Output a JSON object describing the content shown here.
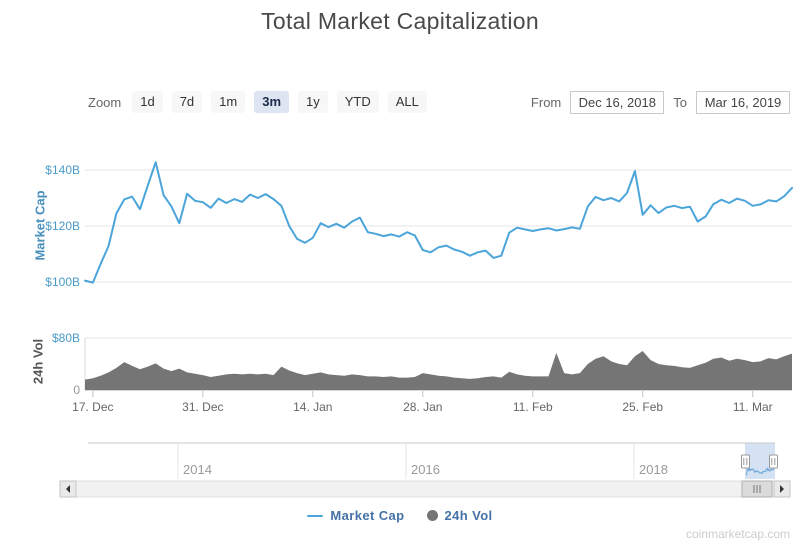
{
  "title": "Total Market Capitalization",
  "range_selector": {
    "zoom_label": "Zoom",
    "buttons": [
      {
        "label": "1d",
        "selected": false
      },
      {
        "label": "7d",
        "selected": false
      },
      {
        "label": "1m",
        "selected": false
      },
      {
        "label": "3m",
        "selected": true
      },
      {
        "label": "1y",
        "selected": false
      },
      {
        "label": "YTD",
        "selected": false
      },
      {
        "label": "ALL",
        "selected": false
      }
    ],
    "from_label": "From",
    "from_value": "Dec 16, 2018",
    "to_label": "To",
    "to_value": "Mar 16, 2019"
  },
  "chart_data": [
    {
      "type": "line",
      "name": "Market Cap",
      "ylabel": "Market Cap",
      "unit": "$B",
      "color": "#4ba5da",
      "x_start": "Dec 16, 2018",
      "x_end": "Mar 16, 2019",
      "x_interval": "daily",
      "ylim": [
        97,
        146
      ],
      "yticks": [
        {
          "value": 140,
          "label": "$140B"
        },
        {
          "value": 120,
          "label": "$120B"
        },
        {
          "value": 100,
          "label": "$100B"
        }
      ],
      "xticks": [
        {
          "day_index": 1,
          "label": "17. Dec"
        },
        {
          "day_index": 15,
          "label": "31. Dec"
        },
        {
          "day_index": 29,
          "label": "14. Jan"
        },
        {
          "day_index": 43,
          "label": "28. Jan"
        },
        {
          "day_index": 57,
          "label": "11. Feb"
        },
        {
          "day_index": 71,
          "label": "25. Feb"
        },
        {
          "day_index": 85,
          "label": "11. Mar"
        }
      ],
      "values": [
        100.5,
        99.8,
        106.5,
        112.9,
        124.5,
        129.5,
        130.5,
        126.0,
        134.5,
        142.8,
        131.0,
        127.0,
        121.0,
        131.5,
        129.0,
        128.5,
        126.5,
        129.8,
        128.2,
        129.6,
        128.6,
        131.2,
        130.0,
        131.4,
        129.6,
        127.2,
        120.0,
        115.4,
        114.0,
        115.8,
        121.0,
        119.6,
        120.8,
        119.4,
        121.6,
        123.0,
        117.8,
        117.2,
        116.4,
        117.0,
        116.2,
        117.8,
        116.6,
        111.4,
        110.6,
        112.4,
        113.0,
        111.6,
        110.8,
        109.4,
        110.6,
        111.2,
        108.6,
        109.4,
        117.6,
        119.4,
        118.8,
        118.2,
        118.8,
        119.2,
        118.4,
        118.9,
        119.5,
        119.0,
        127.0,
        130.4,
        129.2,
        130.0,
        128.8,
        131.8,
        139.6,
        124.0,
        127.4,
        124.6,
        126.6,
        127.2,
        126.4,
        126.9,
        121.6,
        123.4,
        127.8,
        129.4,
        128.2,
        129.8,
        129.0,
        127.2,
        127.7,
        129.2,
        128.8,
        130.6,
        133.6
      ]
    },
    {
      "type": "area",
      "name": "24h Vol",
      "ylabel": "24h Vol",
      "unit": "$B",
      "color": "#757575",
      "x_start": "Dec 16, 2018",
      "x_end": "Mar 16, 2019",
      "x_interval": "daily",
      "ylim": [
        0,
        85
      ],
      "yticks": [
        {
          "value": 80,
          "label": "$80B",
          "muted": false
        },
        {
          "value": 0,
          "label": "0",
          "muted": true
        }
      ],
      "values": [
        16,
        18,
        22,
        27,
        34,
        43,
        37,
        32,
        36,
        41,
        33,
        29,
        33,
        27,
        25,
        23,
        20,
        22,
        24,
        25,
        24,
        25,
        24,
        25,
        23,
        36,
        30,
        26,
        23,
        25,
        27,
        24,
        23,
        22,
        24,
        23,
        21,
        21,
        20,
        21,
        19,
        19,
        20,
        26,
        24,
        22,
        21,
        19,
        18,
        17,
        18,
        20,
        21,
        19,
        28,
        24,
        22,
        21,
        21,
        21,
        57,
        26,
        24,
        26,
        40,
        48,
        52,
        44,
        40,
        38,
        52,
        60,
        46,
        40,
        38,
        37,
        35,
        34,
        38,
        42,
        48,
        50,
        45,
        48,
        46,
        43,
        44,
        49,
        47,
        52,
        56
      ]
    }
  ],
  "navigator": {
    "year_labels": [
      "2014",
      "2016",
      "2018"
    ],
    "selection": {
      "from": "Dec 16, 2018",
      "to": "Mar 16, 2019"
    }
  },
  "legend": [
    {
      "label": "Market Cap",
      "marker": "line",
      "color": "#4ba5da"
    },
    {
      "label": "24h Vol",
      "marker": "circle",
      "color": "#757575"
    }
  ],
  "watermark": "coinmarketcap.com"
}
